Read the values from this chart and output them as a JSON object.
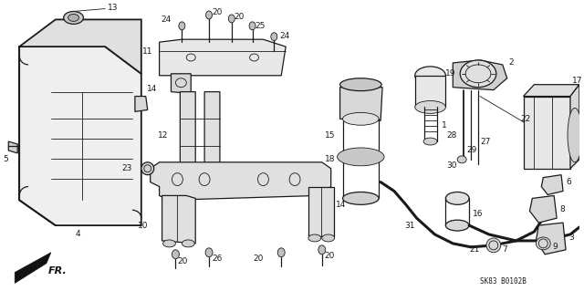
{
  "bg_color": "#ffffff",
  "line_color": "#1a1a1a",
  "fig_width": 6.4,
  "fig_height": 3.19,
  "dpi": 100,
  "part_code": "SK83 B0102B",
  "label_fontsize": 6.5,
  "code_fontsize": 5.5
}
